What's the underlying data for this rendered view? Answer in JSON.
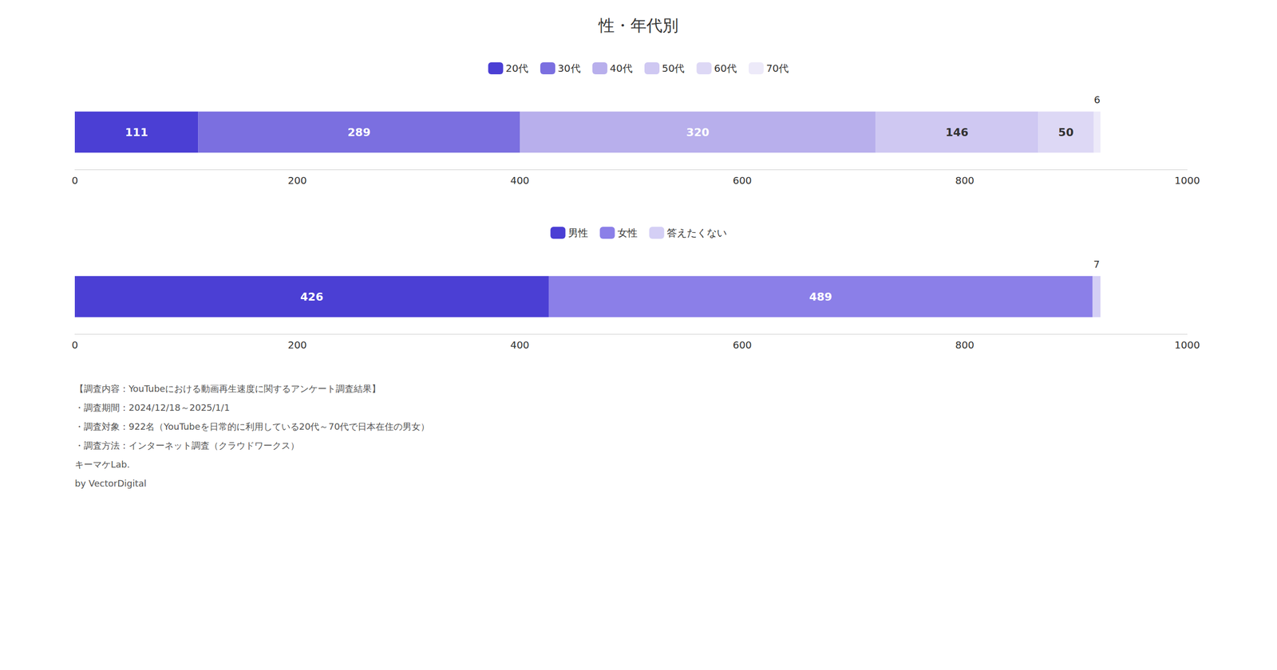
{
  "chart_data": [
    {
      "type": "bar",
      "title": "性・年代別",
      "orientation": "horizontal",
      "stacked": true,
      "categories": [
        null
      ],
      "series": [
        {
          "name": "20代",
          "color": "#4B3FD4",
          "values": [
            111
          ]
        },
        {
          "name": "30代",
          "color": "#7B6FE0",
          "values": [
            289
          ]
        },
        {
          "name": "40代",
          "color": "#B8AFEC",
          "values": [
            320
          ]
        },
        {
          "name": "50代",
          "color": "#CFC8F2",
          "values": [
            146
          ]
        },
        {
          "name": "60代",
          "color": "#DDD8F5",
          "values": [
            50
          ]
        },
        {
          "name": "70代",
          "color": "#EDEAF9",
          "values": [
            6
          ]
        }
      ],
      "xlim": [
        0,
        1000
      ],
      "xticks": [
        0,
        200,
        400,
        600,
        800,
        1000
      ],
      "grid": false,
      "legend": "top",
      "data_labels": true,
      "tick_labels": "x"
    },
    {
      "type": "bar",
      "orientation": "horizontal",
      "stacked": true,
      "categories": [
        null
      ],
      "series": [
        {
          "name": "男性",
          "color": "#4B3FD4",
          "values": [
            426
          ]
        },
        {
          "name": "女性",
          "color": "#8B7FE8",
          "values": [
            489
          ]
        },
        {
          "name": "答えたくない",
          "color": "#D4CFF5",
          "values": [
            7
          ]
        }
      ],
      "xlim": [
        0,
        1000
      ],
      "xticks": [
        0,
        200,
        400,
        600,
        800,
        1000
      ],
      "grid": false,
      "legend": "top",
      "data_labels": true,
      "tick_labels": "x",
      "annotations": [
        "【調査内容：YouTubeにおける動画再生速度に関するアンケート調査結果】",
        "・調査期間：2024/12/18～2025/1/1",
        "・調査対象：922名（YouTubeを日常的に利用している20代～70代で日本在住の男女）",
        "・調査方法：インターネット調査（クラウドワークス）",
        "キーマケLab.",
        "by VectorDigital"
      ]
    }
  ]
}
